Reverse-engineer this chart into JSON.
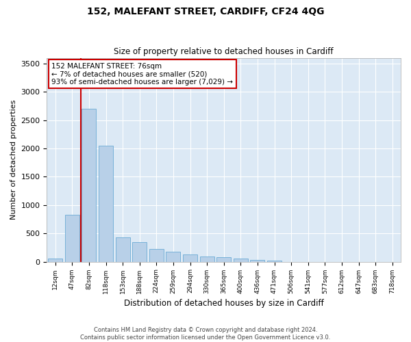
{
  "title1": "152, MALEFANT STREET, CARDIFF, CF24 4QG",
  "title2": "Size of property relative to detached houses in Cardiff",
  "xlabel": "Distribution of detached houses by size in Cardiff",
  "ylabel": "Number of detached properties",
  "categories": [
    "12sqm",
    "47sqm",
    "82sqm",
    "118sqm",
    "153sqm",
    "188sqm",
    "224sqm",
    "259sqm",
    "294sqm",
    "330sqm",
    "365sqm",
    "400sqm",
    "436sqm",
    "471sqm",
    "506sqm",
    "541sqm",
    "577sqm",
    "612sqm",
    "647sqm",
    "683sqm",
    "718sqm"
  ],
  "values": [
    50,
    830,
    2700,
    2050,
    430,
    350,
    220,
    170,
    130,
    90,
    85,
    60,
    30,
    20,
    0,
    0,
    0,
    0,
    0,
    0,
    0
  ],
  "bar_color": "#b8d0e8",
  "bar_edge_color": "#6aaad4",
  "background_color": "#dce9f5",
  "grid_color": "#ffffff",
  "annotation_box_color": "#ffffff",
  "annotation_box_edge": "#cc0000",
  "vline_color": "#cc0000",
  "annotation_text_line1": "152 MALEFANT STREET: 76sqm",
  "annotation_text_line2": "← 7% of detached houses are smaller (520)",
  "annotation_text_line3": "93% of semi-detached houses are larger (7,029) →",
  "footer_line1": "Contains HM Land Registry data © Crown copyright and database right 2024.",
  "footer_line2": "Contains public sector information licensed under the Open Government Licence v3.0.",
  "ylim": [
    0,
    3600
  ],
  "yticks": [
    0,
    500,
    1000,
    1500,
    2000,
    2500,
    3000,
    3500
  ]
}
